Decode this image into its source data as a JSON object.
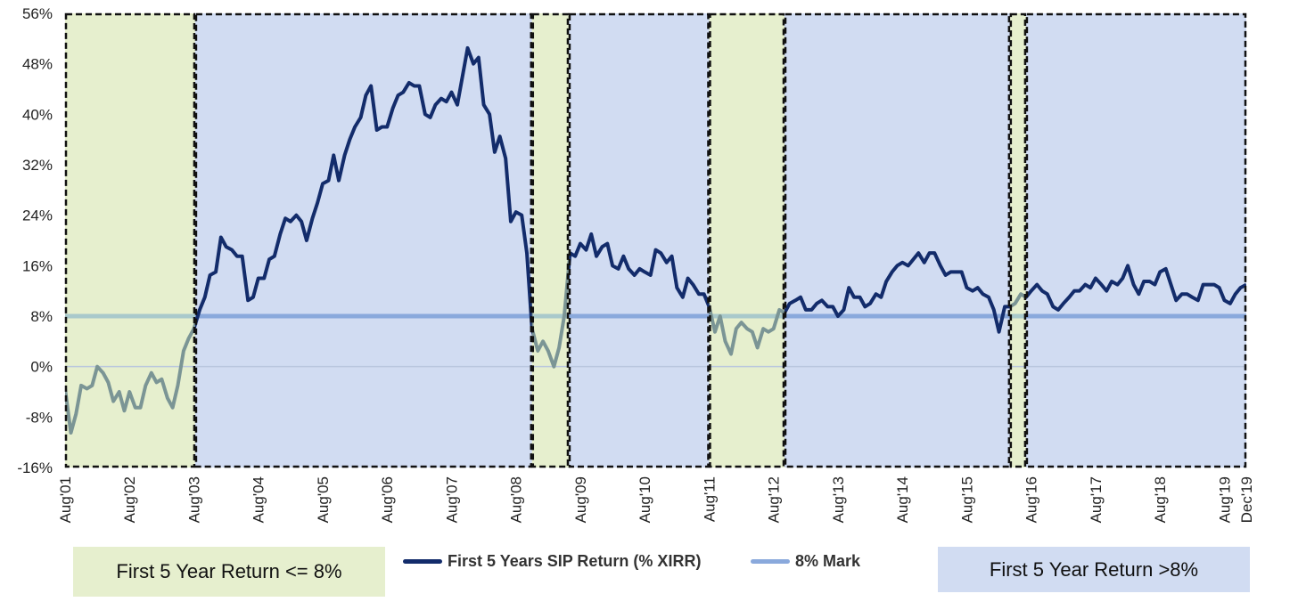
{
  "colors": {
    "green_band": "#e6efce",
    "blue_band": "#d1dcf2",
    "main_line": "#132c6b",
    "mark_line": "#8aa9dc",
    "faded_line": "#7b9595",
    "faded_mark": "#a9c9cb",
    "zero_line": "#b9c6de"
  },
  "chart_data": {
    "type": "line",
    "title": "",
    "ylim": [
      -16,
      56
    ],
    "y_ticks": [
      -16,
      -8,
      0,
      8,
      16,
      24,
      32,
      40,
      48,
      56
    ],
    "y_tick_labels": [
      "-16%",
      "-8%",
      "0%",
      "8%",
      "16%",
      "24%",
      "32%",
      "40%",
      "48%",
      "56%"
    ],
    "x_range_years": [
      2001.58,
      2019.92
    ],
    "x_ticks": [
      {
        "label": "Aug'01",
        "year": 2001.58
      },
      {
        "label": "Aug'02",
        "year": 2002.58
      },
      {
        "label": "Aug'03",
        "year": 2003.58
      },
      {
        "label": "Aug'04",
        "year": 2004.58
      },
      {
        "label": "Aug'05",
        "year": 2005.58
      },
      {
        "label": "Aug'06",
        "year": 2006.58
      },
      {
        "label": "Aug'07",
        "year": 2007.58
      },
      {
        "label": "Aug'08",
        "year": 2008.58
      },
      {
        "label": "Aug'09",
        "year": 2009.58
      },
      {
        "label": "Aug'10",
        "year": 2010.58
      },
      {
        "label": "Aug'11",
        "year": 2011.58
      },
      {
        "label": "Aug'12",
        "year": 2012.58
      },
      {
        "label": "Aug'13",
        "year": 2013.58
      },
      {
        "label": "Aug'14",
        "year": 2014.58
      },
      {
        "label": "Aug'15",
        "year": 2015.58
      },
      {
        "label": "Aug'16",
        "year": 2016.58
      },
      {
        "label": "Aug'17",
        "year": 2017.58
      },
      {
        "label": "Aug'18",
        "year": 2018.58
      },
      {
        "label": "Aug'19",
        "year": 2019.58
      },
      {
        "label": "Dec'19",
        "year": 2019.92
      }
    ],
    "bands": [
      {
        "from": 2001.58,
        "to": 2003.6,
        "kind": "low"
      },
      {
        "from": 2003.6,
        "to": 2008.83,
        "kind": "high"
      },
      {
        "from": 2008.83,
        "to": 2009.4,
        "kind": "low"
      },
      {
        "from": 2009.4,
        "to": 2011.58,
        "kind": "high"
      },
      {
        "from": 2011.58,
        "to": 2012.75,
        "kind": "low"
      },
      {
        "from": 2012.75,
        "to": 2016.25,
        "kind": "high"
      },
      {
        "from": 2016.25,
        "to": 2016.5,
        "kind": "low"
      },
      {
        "from": 2016.5,
        "to": 2019.92,
        "kind": "high"
      }
    ],
    "mark_value": 8,
    "series": [
      {
        "name": "First 5 Years SIP Return (% XIRR)",
        "points": [
          [
            2001.58,
            -3.5
          ],
          [
            2001.67,
            -10.5
          ],
          [
            2001.75,
            -7.5
          ],
          [
            2001.83,
            -3
          ],
          [
            2001.92,
            -3.5
          ],
          [
            2002.0,
            -3
          ],
          [
            2002.08,
            0
          ],
          [
            2002.17,
            -1
          ],
          [
            2002.25,
            -2.5
          ],
          [
            2002.33,
            -5.5
          ],
          [
            2002.42,
            -4
          ],
          [
            2002.5,
            -7
          ],
          [
            2002.58,
            -4
          ],
          [
            2002.67,
            -6.5
          ],
          [
            2002.75,
            -6.5
          ],
          [
            2002.83,
            -3
          ],
          [
            2002.92,
            -1
          ],
          [
            2003.0,
            -2.5
          ],
          [
            2003.08,
            -2
          ],
          [
            2003.17,
            -5
          ],
          [
            2003.25,
            -6.5
          ],
          [
            2003.33,
            -3
          ],
          [
            2003.42,
            2.5
          ],
          [
            2003.5,
            4.5
          ],
          [
            2003.58,
            6
          ],
          [
            2003.67,
            9
          ],
          [
            2003.75,
            11
          ],
          [
            2003.83,
            14.5
          ],
          [
            2003.92,
            15
          ],
          [
            2004.0,
            20.5
          ],
          [
            2004.08,
            19
          ],
          [
            2004.17,
            18.5
          ],
          [
            2004.25,
            17.5
          ],
          [
            2004.33,
            17.5
          ],
          [
            2004.42,
            10.5
          ],
          [
            2004.5,
            11
          ],
          [
            2004.58,
            14
          ],
          [
            2004.67,
            14
          ],
          [
            2004.75,
            17
          ],
          [
            2004.83,
            17.5
          ],
          [
            2004.92,
            21
          ],
          [
            2005.0,
            23.5
          ],
          [
            2005.08,
            23
          ],
          [
            2005.17,
            24
          ],
          [
            2005.25,
            23
          ],
          [
            2005.33,
            20
          ],
          [
            2005.42,
            23.5
          ],
          [
            2005.5,
            26
          ],
          [
            2005.58,
            29
          ],
          [
            2005.67,
            29.5
          ],
          [
            2005.75,
            33.5
          ],
          [
            2005.83,
            29.5
          ],
          [
            2005.92,
            33.5
          ],
          [
            2006.0,
            36
          ],
          [
            2006.08,
            38
          ],
          [
            2006.17,
            39.5
          ],
          [
            2006.25,
            43
          ],
          [
            2006.33,
            44.5
          ],
          [
            2006.42,
            37.5
          ],
          [
            2006.5,
            38
          ],
          [
            2006.58,
            38
          ],
          [
            2006.67,
            41
          ],
          [
            2006.75,
            43
          ],
          [
            2006.83,
            43.5
          ],
          [
            2006.92,
            45
          ],
          [
            2007.0,
            44.5
          ],
          [
            2007.08,
            44.5
          ],
          [
            2007.17,
            40
          ],
          [
            2007.25,
            39.5
          ],
          [
            2007.33,
            41.5
          ],
          [
            2007.42,
            42.5
          ],
          [
            2007.5,
            42
          ],
          [
            2007.58,
            43.5
          ],
          [
            2007.67,
            41.5
          ],
          [
            2007.75,
            46
          ],
          [
            2007.83,
            50.5
          ],
          [
            2007.92,
            48
          ],
          [
            2008.0,
            49
          ],
          [
            2008.08,
            41.5
          ],
          [
            2008.17,
            40
          ],
          [
            2008.25,
            34
          ],
          [
            2008.33,
            36.5
          ],
          [
            2008.42,
            33
          ],
          [
            2008.5,
            23
          ],
          [
            2008.58,
            24.5
          ],
          [
            2008.67,
            24
          ],
          [
            2008.75,
            18
          ],
          [
            2008.83,
            6
          ],
          [
            2008.92,
            2.5
          ],
          [
            2009.0,
            4
          ],
          [
            2009.08,
            2.5
          ],
          [
            2009.17,
            0
          ],
          [
            2009.25,
            3
          ],
          [
            2009.33,
            8
          ],
          [
            2009.42,
            18
          ],
          [
            2009.5,
            17.5
          ],
          [
            2009.58,
            19.5
          ],
          [
            2009.67,
            18.5
          ],
          [
            2009.75,
            21
          ],
          [
            2009.83,
            17.5
          ],
          [
            2009.92,
            19
          ],
          [
            2010.0,
            19.5
          ],
          [
            2010.08,
            16
          ],
          [
            2010.17,
            15.5
          ],
          [
            2010.25,
            17.5
          ],
          [
            2010.33,
            15.5
          ],
          [
            2010.42,
            14.5
          ],
          [
            2010.5,
            15.5
          ],
          [
            2010.58,
            15
          ],
          [
            2010.67,
            14.5
          ],
          [
            2010.75,
            18.5
          ],
          [
            2010.83,
            18
          ],
          [
            2010.92,
            16.5
          ],
          [
            2011.0,
            17.5
          ],
          [
            2011.08,
            12.5
          ],
          [
            2011.17,
            11
          ],
          [
            2011.25,
            14
          ],
          [
            2011.33,
            13
          ],
          [
            2011.42,
            11.5
          ],
          [
            2011.5,
            11.5
          ],
          [
            2011.58,
            9.5
          ],
          [
            2011.67,
            5.5
          ],
          [
            2011.75,
            8
          ],
          [
            2011.83,
            4
          ],
          [
            2011.92,
            2
          ],
          [
            2012.0,
            6
          ],
          [
            2012.08,
            7
          ],
          [
            2012.17,
            6
          ],
          [
            2012.25,
            5.5
          ],
          [
            2012.33,
            3
          ],
          [
            2012.42,
            6
          ],
          [
            2012.5,
            5.5
          ],
          [
            2012.58,
            6
          ],
          [
            2012.67,
            9
          ],
          [
            2012.75,
            8.5
          ],
          [
            2012.83,
            10
          ],
          [
            2012.92,
            10.5
          ],
          [
            2013.0,
            11
          ],
          [
            2013.08,
            9
          ],
          [
            2013.17,
            9
          ],
          [
            2013.25,
            10
          ],
          [
            2013.33,
            10.5
          ],
          [
            2013.42,
            9.5
          ],
          [
            2013.5,
            9.5
          ],
          [
            2013.58,
            8
          ],
          [
            2013.67,
            9
          ],
          [
            2013.75,
            12.5
          ],
          [
            2013.83,
            11
          ],
          [
            2013.92,
            11
          ],
          [
            2014.0,
            9.5
          ],
          [
            2014.08,
            10
          ],
          [
            2014.17,
            11.5
          ],
          [
            2014.25,
            11
          ],
          [
            2014.33,
            13.5
          ],
          [
            2014.42,
            15
          ],
          [
            2014.5,
            16
          ],
          [
            2014.58,
            16.5
          ],
          [
            2014.67,
            16
          ],
          [
            2014.75,
            17
          ],
          [
            2014.83,
            18
          ],
          [
            2014.92,
            16.5
          ],
          [
            2015.0,
            18
          ],
          [
            2015.08,
            18
          ],
          [
            2015.17,
            16
          ],
          [
            2015.25,
            14.5
          ],
          [
            2015.33,
            15
          ],
          [
            2015.42,
            15
          ],
          [
            2015.5,
            15
          ],
          [
            2015.58,
            12.5
          ],
          [
            2015.67,
            12
          ],
          [
            2015.75,
            12.5
          ],
          [
            2015.83,
            11.5
          ],
          [
            2015.92,
            11
          ],
          [
            2016.0,
            9
          ],
          [
            2016.08,
            5.5
          ],
          [
            2016.17,
            9.5
          ],
          [
            2016.25,
            9.5
          ],
          [
            2016.33,
            10
          ],
          [
            2016.42,
            11.5
          ],
          [
            2016.5,
            11
          ],
          [
            2016.58,
            12
          ],
          [
            2016.67,
            13
          ],
          [
            2016.75,
            12
          ],
          [
            2016.83,
            11.5
          ],
          [
            2016.92,
            9.5
          ],
          [
            2017.0,
            9
          ],
          [
            2017.08,
            10
          ],
          [
            2017.17,
            11
          ],
          [
            2017.25,
            12
          ],
          [
            2017.33,
            12
          ],
          [
            2017.42,
            13
          ],
          [
            2017.5,
            12.5
          ],
          [
            2017.58,
            14
          ],
          [
            2017.67,
            13
          ],
          [
            2017.75,
            12
          ],
          [
            2017.83,
            13.5
          ],
          [
            2017.92,
            13
          ],
          [
            2018.0,
            14
          ],
          [
            2018.08,
            16
          ],
          [
            2018.17,
            13
          ],
          [
            2018.25,
            11.5
          ],
          [
            2018.33,
            13.5
          ],
          [
            2018.42,
            13.5
          ],
          [
            2018.5,
            13
          ],
          [
            2018.58,
            15
          ],
          [
            2018.67,
            15.5
          ],
          [
            2018.75,
            13
          ],
          [
            2018.83,
            10.5
          ],
          [
            2018.92,
            11.5
          ],
          [
            2019.0,
            11.5
          ],
          [
            2019.08,
            11
          ],
          [
            2019.17,
            10.5
          ],
          [
            2019.25,
            13
          ],
          [
            2019.33,
            13
          ],
          [
            2019.42,
            13
          ],
          [
            2019.5,
            12.5
          ],
          [
            2019.58,
            10.5
          ],
          [
            2019.67,
            10
          ],
          [
            2019.75,
            11.5
          ],
          [
            2019.83,
            12.5
          ],
          [
            2019.92,
            13
          ]
        ]
      },
      {
        "name": "8% Mark",
        "points": [
          [
            2001.58,
            8
          ],
          [
            2019.92,
            8
          ]
        ]
      }
    ]
  },
  "legend": {
    "series_label": "First 5 Years SIP Return (% XIRR)",
    "mark_label": "8% Mark",
    "low_box": "First 5 Year Return <= 8%",
    "high_box": "First 5 Year Return >8%"
  }
}
